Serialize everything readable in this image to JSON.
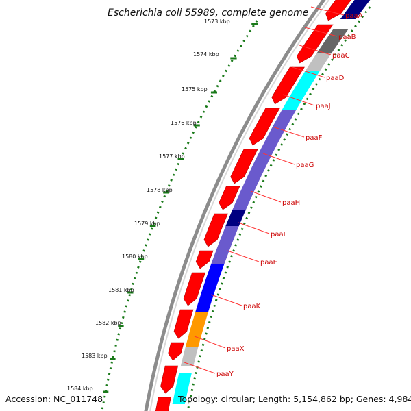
{
  "title": "Escherichia coli 55989, complete genome",
  "accession": "Accession: NC_011748",
  "summary": "Topology: circular; Length: 5,154,862 bp; Genes: 4,984",
  "ruler": {
    "labels": [
      "1573 kbp",
      "1574 kbp",
      "1575 kbp",
      "1576 kbp",
      "1577 kbp",
      "1578 kbp",
      "1579 kbp",
      "1580 kbp",
      "1581 kbp",
      "1582 kbp",
      "1583 kbp",
      "1584 kbp"
    ],
    "color": "#1a7a1a"
  },
  "genes": [
    "paaA",
    "paaB",
    "paaC",
    "paaD",
    "paaJ",
    "paaF",
    "paaG",
    "paaH",
    "paaI",
    "paaE",
    "paaK",
    "paaX",
    "paaY"
  ],
  "colors": {
    "backbone": "#8c8c8c",
    "cds": "#ff0000",
    "label": "#cc0000",
    "leader": "#ff3333",
    "feature_palette": [
      "#000080",
      "#666666",
      "#c0c0c0",
      "#00ffff",
      "#6a5acd",
      "#0000ff",
      "#ff9900"
    ]
  }
}
